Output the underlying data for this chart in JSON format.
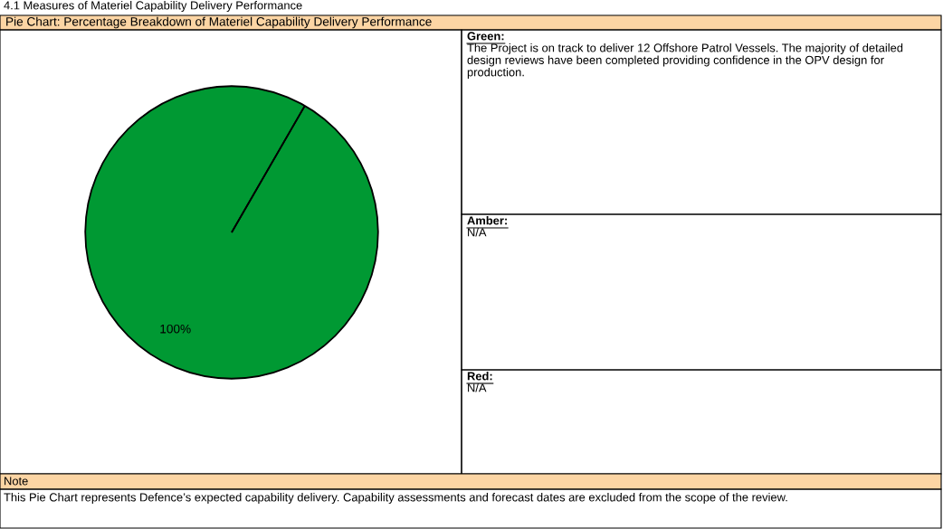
{
  "chart_data": {
    "type": "pie",
    "title": "4.1 Measures of Materiel Capability Delivery Performance",
    "subtitle": "Pie Chart: Percentage Breakdown of Materiel Capability Delivery Performance",
    "categories": [
      null,
      null,
      null
    ],
    "values": [
      100,
      0,
      0
    ],
    "colors": [
      "#009933",
      "#ffc000",
      "#ff0000"
    ],
    "value_labels": [
      "100%",
      null,
      null
    ],
    "annotations": [
      "Green:",
      "The Project is on track to deliver 12 Offshore Patrol Vessels. The majority of detailed design reviews have been completed providing confidence in the OPV design for production.",
      "Amber:",
      "N/A",
      "Red:",
      "N/A",
      "Note",
      "This Pie Chart represents Defence’s expected capability delivery. Capability assessments and forecast dates are excluded from the scope of the review."
    ]
  }
}
